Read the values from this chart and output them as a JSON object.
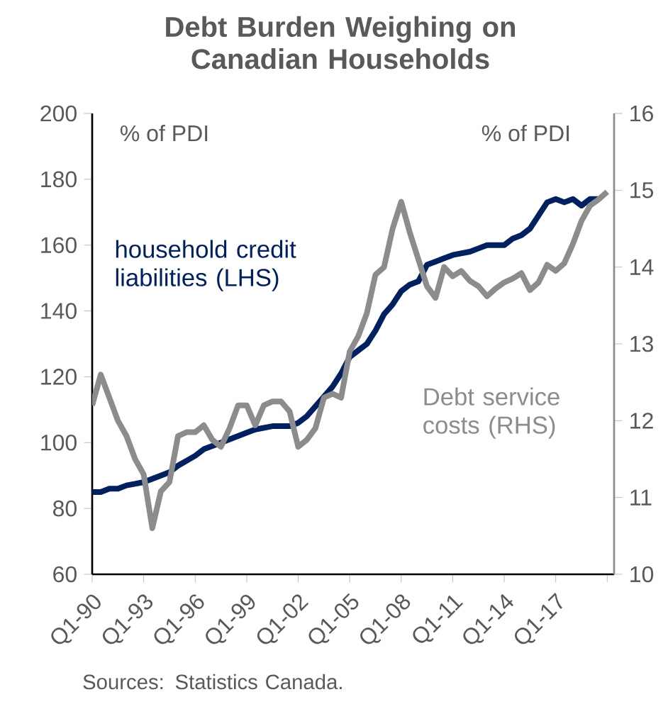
{
  "chart_data": {
    "type": "line",
    "title": "Debt Burden Weighing on Canadian Households",
    "ylabel": "% of PDI",
    "y2label": "% of PDI",
    "categories": [
      "Q1-90",
      null,
      null,
      null,
      null,
      null,
      "Q1-93",
      null,
      null,
      null,
      null,
      null,
      "Q1-96",
      null,
      null,
      null,
      null,
      null,
      "Q1-99",
      null,
      null,
      null,
      null,
      null,
      "Q1-02",
      null,
      null,
      null,
      null,
      null,
      "Q1-05",
      null,
      null,
      null,
      null,
      null,
      "Q1-08",
      null,
      null,
      null,
      null,
      null,
      "Q1-11",
      null,
      null,
      null,
      null,
      null,
      "Q1-14",
      null,
      null,
      null,
      null,
      null,
      "Q1-17",
      null,
      null,
      null,
      null,
      null,
      null
    ],
    "ylim": [
      60,
      200
    ],
    "yticks": [
      60,
      80,
      100,
      120,
      140,
      160,
      180,
      200
    ],
    "y2lim": [
      10,
      16
    ],
    "y2ticks": [
      10,
      11,
      12,
      13,
      14,
      15,
      16
    ],
    "series": [
      {
        "name": "household credit liabilities (LHS)",
        "color": "#002060",
        "values": [
          85,
          85,
          86,
          86,
          87,
          87.5,
          88,
          89,
          90,
          91,
          93,
          94.5,
          96,
          98,
          99,
          100,
          101,
          102,
          103,
          104,
          104.5,
          105,
          105,
          105,
          106,
          108,
          111,
          114,
          117,
          121,
          126,
          128,
          130,
          134,
          139,
          142,
          146,
          148,
          149,
          154,
          155,
          156,
          157,
          157.5,
          158,
          159,
          160,
          160,
          160,
          162,
          163,
          165,
          169,
          173,
          174,
          173,
          174,
          172,
          174,
          174,
          null
        ]
      },
      {
        "name": "Debt service costs (RHS)",
        "color": "#8c8c8c",
        "axis": "y2",
        "values": [
          12.2,
          12.6,
          12.3,
          12.0,
          11.8,
          11.5,
          11.3,
          10.6,
          11.08,
          11.2,
          11.8,
          11.85,
          11.85,
          11.94,
          11.75,
          11.66,
          11.9,
          12.2,
          12.2,
          11.94,
          12.2,
          12.25,
          12.25,
          12.12,
          11.66,
          11.75,
          11.9,
          12.3,
          12.35,
          12.3,
          12.9,
          13.1,
          13.4,
          13.9,
          14.0,
          14.5,
          14.85,
          14.45,
          14.1,
          13.75,
          13.6,
          14.0,
          13.88,
          13.95,
          13.82,
          13.75,
          13.62,
          13.72,
          13.8,
          13.85,
          13.92,
          13.7,
          13.8,
          14.03,
          13.95,
          14.05,
          14.3,
          14.6,
          14.8,
          14.88,
          14.98
        ]
      }
    ],
    "annotations": [
      "Sources: Statistics Canada."
    ]
  }
}
